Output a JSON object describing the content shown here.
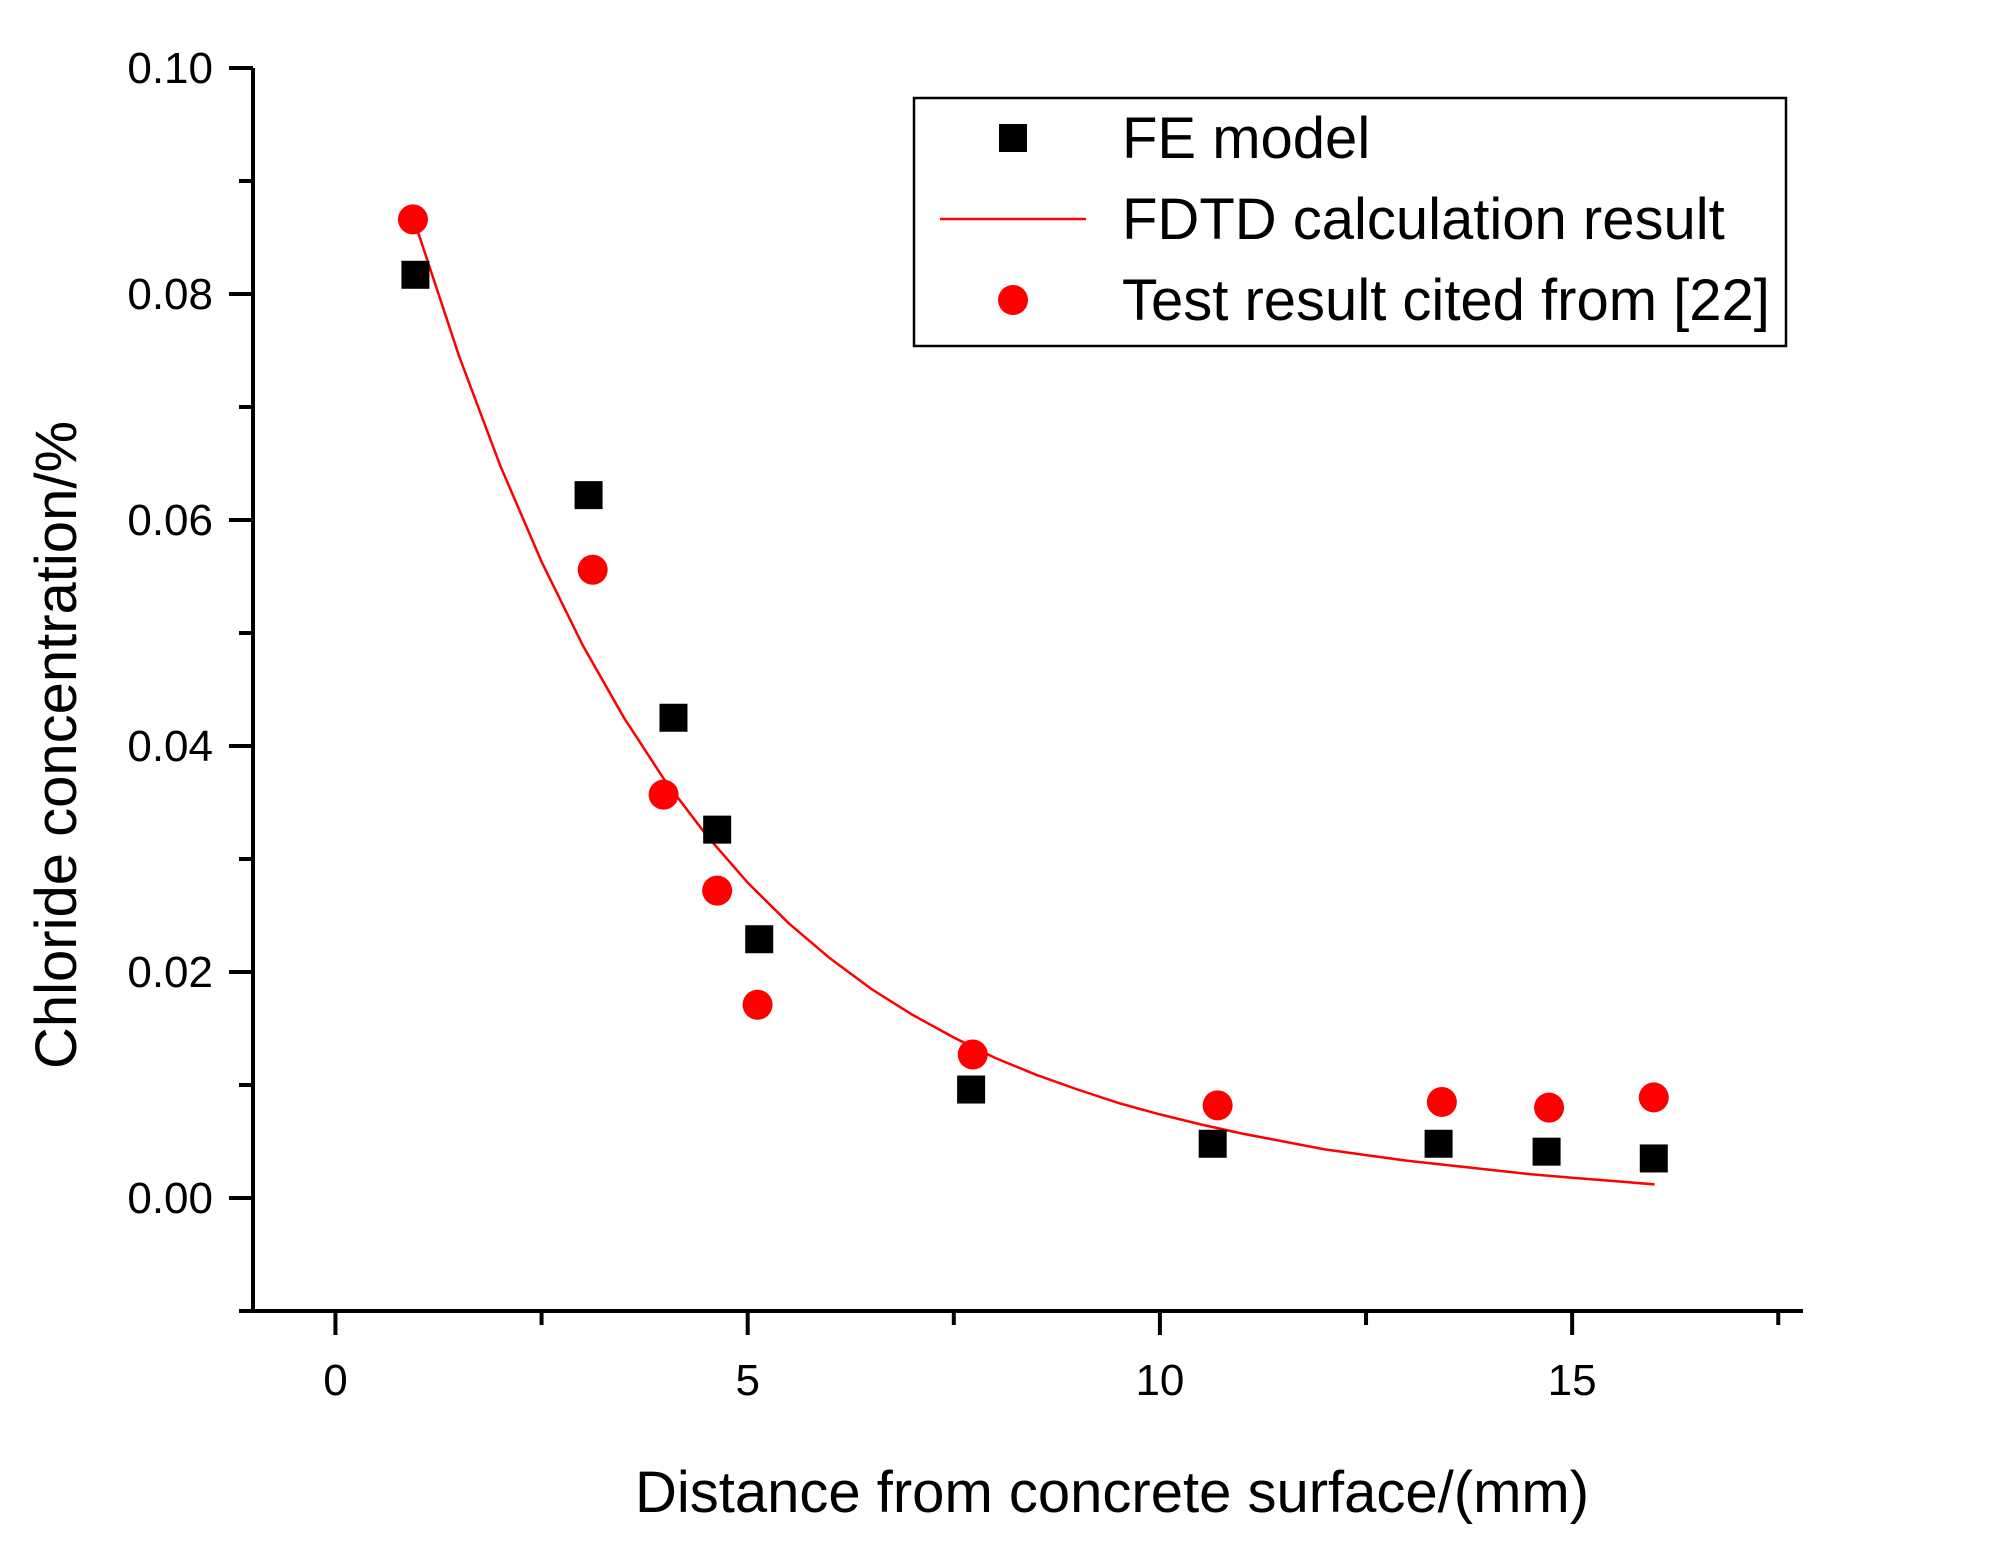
{
  "chart_data": {
    "type": "scatter",
    "title": "",
    "xlabel": "Distance from concrete surface/(mm)",
    "ylabel": "Chloride concentration/%",
    "xlim": [
      -1,
      17.8
    ],
    "ylim": [
      -0.01,
      0.1
    ],
    "xticks": [
      0,
      5,
      10,
      15
    ],
    "xtick_labels": [
      "0",
      "5",
      "10",
      "15"
    ],
    "x_minor_ticks": [
      2.5,
      7.5,
      12.5,
      17.5
    ],
    "yticks": [
      0.0,
      0.02,
      0.04,
      0.06,
      0.08,
      0.1
    ],
    "ytick_labels": [
      "0.00",
      "0.02",
      "0.04",
      "0.06",
      "0.08",
      "0.10"
    ],
    "y_minor_ticks": [
      0.09,
      0.07,
      0.05,
      0.03,
      0.01,
      -0.01
    ],
    "grid": false,
    "legend_position": "top-right",
    "series": [
      {
        "name": "FE model",
        "kind": "scatter",
        "marker": "square",
        "color": "#000000",
        "x": [
          0.97,
          3.07,
          4.1,
          4.63,
          5.14,
          7.71,
          10.64,
          13.38,
          14.69,
          15.99
        ],
        "y": [
          0.0817,
          0.0622,
          0.0425,
          0.0326,
          0.0229,
          0.0096,
          0.0048,
          0.0048,
          0.0041,
          0.0035
        ]
      },
      {
        "name": "FDTD calculation result",
        "kind": "line",
        "color": "#ff0000",
        "x": [
          1.0,
          1.5,
          2.0,
          2.5,
          3.0,
          3.5,
          4.0,
          4.5,
          5.0,
          5.5,
          6.0,
          6.5,
          7.0,
          7.5,
          8.0,
          8.5,
          9.0,
          9.5,
          10.0,
          10.5,
          11.0,
          11.5,
          12.0,
          12.5,
          13.0,
          13.5,
          14.0,
          14.5,
          15.0,
          15.5,
          16.0
        ],
        "y": [
          0.0855,
          0.0745,
          0.0648,
          0.0563,
          0.0489,
          0.0425,
          0.0369,
          0.0321,
          0.0279,
          0.0243,
          0.0212,
          0.0185,
          0.0162,
          0.0142,
          0.0124,
          0.0109,
          0.0096,
          0.0084,
          0.0074,
          0.0065,
          0.0057,
          0.005,
          0.0043,
          0.0038,
          0.0033,
          0.0029,
          0.0025,
          0.0021,
          0.0018,
          0.0015,
          0.0012
        ]
      },
      {
        "name": "Test result cited from [22]",
        "kind": "scatter",
        "marker": "circle",
        "color": "#ff0000",
        "x": [
          0.94,
          3.12,
          3.98,
          4.63,
          5.12,
          7.73,
          10.7,
          13.42,
          14.72,
          15.99
        ],
        "y": [
          0.0866,
          0.0556,
          0.0357,
          0.0272,
          0.0171,
          0.0127,
          0.0082,
          0.0085,
          0.008,
          0.0089
        ]
      }
    ]
  }
}
